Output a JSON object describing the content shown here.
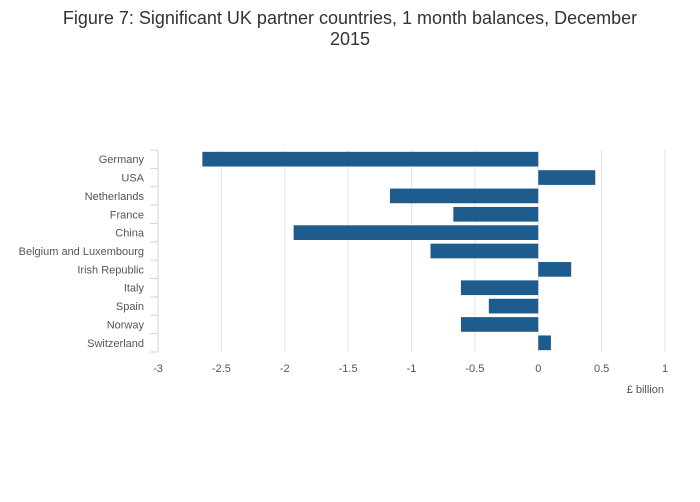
{
  "chart_data": {
    "type": "bar",
    "orientation": "horizontal",
    "title_lines": [
      "Figure 7: Significant UK partner countries, 1 month balances, December",
      "2015"
    ],
    "categories": [
      "Germany",
      "USA",
      "Netherlands",
      "France",
      "China",
      "Belgium and Luxembourg",
      "Irish Republic",
      "Italy",
      "Spain",
      "Norway",
      "Switzerland"
    ],
    "values": [
      -2.65,
      0.45,
      -1.17,
      -0.67,
      -1.93,
      -0.85,
      0.26,
      -0.61,
      -0.39,
      -0.61,
      0.1
    ],
    "xlabel": "£ billion",
    "ylabel": "",
    "xlim": [
      -3,
      1
    ],
    "xticks": [
      -3,
      -2.5,
      -2,
      -1.5,
      -1,
      -0.5,
      0,
      0.5,
      1
    ],
    "xtick_labels": [
      "-3",
      "-2.5",
      "-2",
      "-1.5",
      "-1",
      "-0.5",
      "0",
      "0.5",
      "1"
    ],
    "bar_color": "#1f5c8e",
    "grid": true,
    "legend": "none"
  }
}
